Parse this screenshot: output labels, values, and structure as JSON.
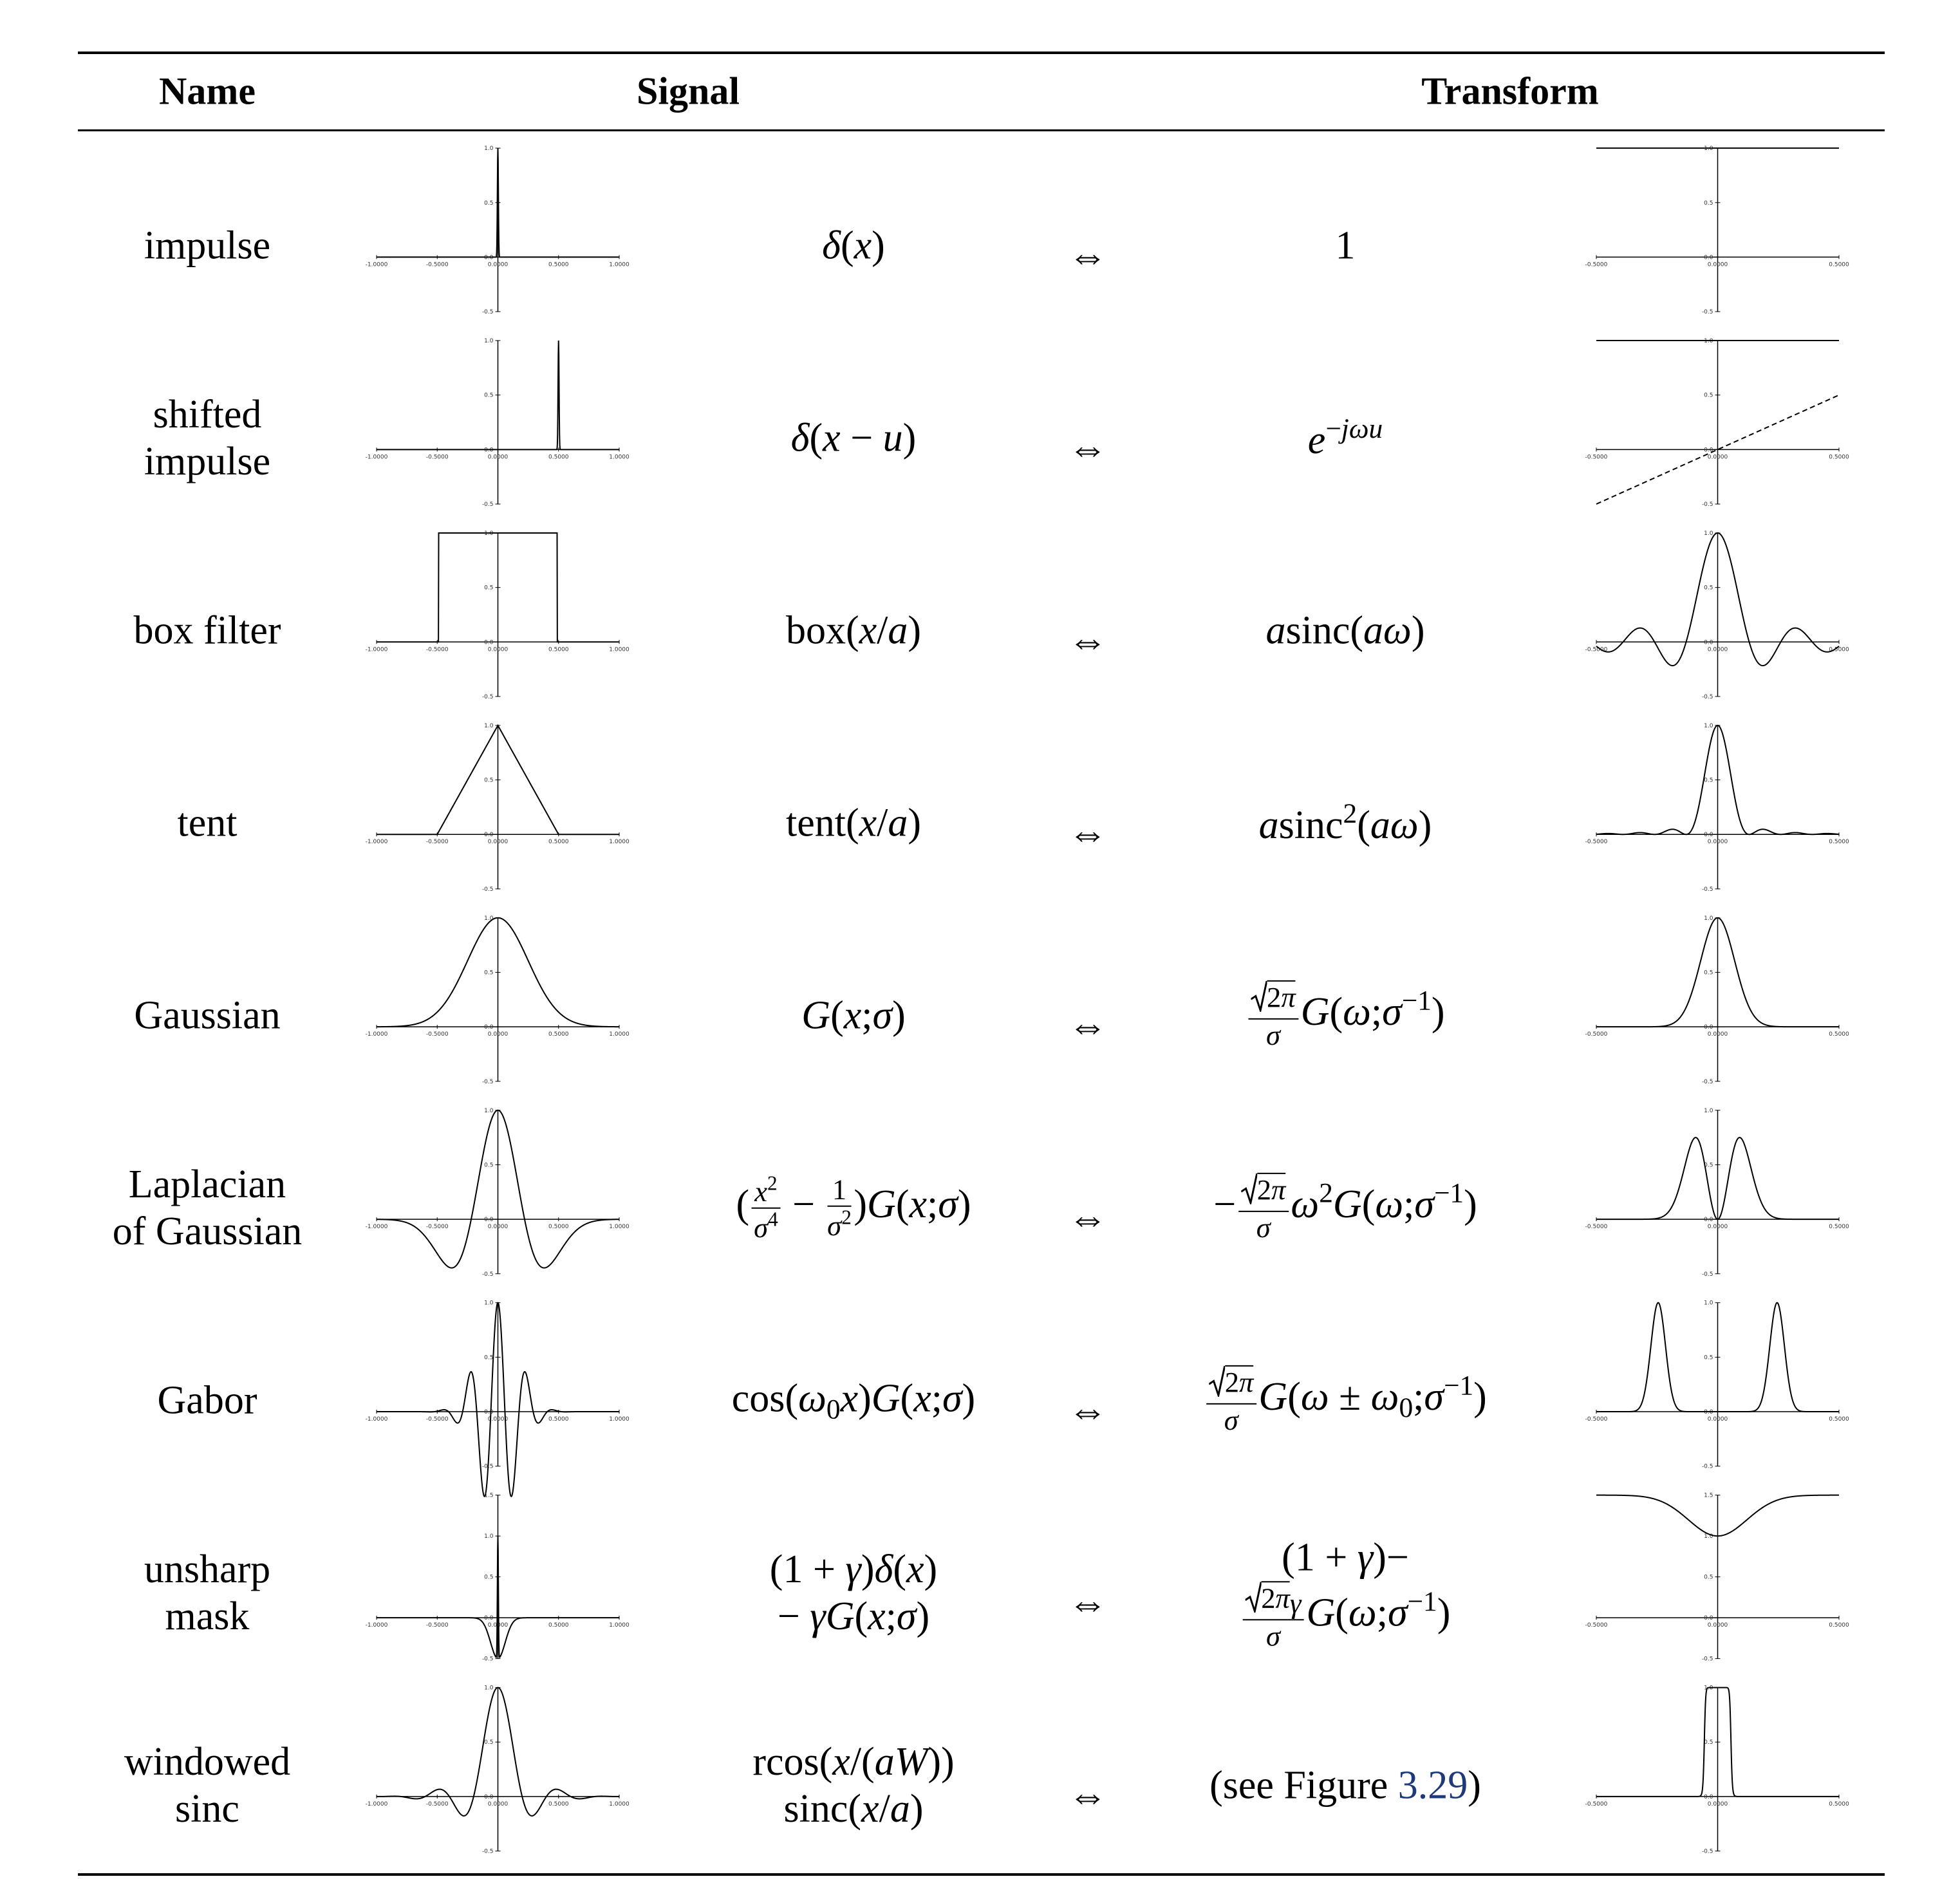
{
  "header": {
    "name": "Name",
    "signal": "Signal",
    "transform": "Transform"
  },
  "signal_axes": {
    "xlim": [
      -1,
      1
    ],
    "xticks": [
      {
        "value": -1,
        "label": "-1.0000"
      },
      {
        "value": -0.5,
        "label": "-0.5000"
      },
      {
        "value": 0,
        "label": "0.0000"
      },
      {
        "value": 0.5,
        "label": "0.5000"
      },
      {
        "value": 1,
        "label": "1.0000"
      }
    ]
  },
  "transform_axes": {
    "xlim": [
      -0.5,
      0.5
    ],
    "xticks": [
      {
        "value": -0.5,
        "label": "-0.5000"
      },
      {
        "value": 0,
        "label": "0.0000"
      },
      {
        "value": 0.5,
        "label": "0.5000"
      }
    ]
  },
  "rows": [
    {
      "name": [
        "impulse"
      ],
      "signal": [
        [
          "δ(x)"
        ]
      ],
      "relation": "⇔",
      "transform": [
        [
          "1"
        ]
      ],
      "ylim": [
        -0.5,
        1.0
      ],
      "yticks": [
        {
          "value": 1,
          "label": "1.0"
        },
        {
          "value": 0.5,
          "label": "0.5"
        },
        {
          "value": 0,
          "label": "0.0"
        },
        {
          "value": -0.5,
          "label": "-0.5"
        }
      ]
    },
    {
      "name": [
        "shifted",
        "impulse"
      ],
      "signal": [
        [
          "δ(x − u)"
        ]
      ],
      "relation": "⇔",
      "transform": [
        [
          "e",
          {
            "sup": [
              "−jωu"
            ]
          }
        ]
      ],
      "ylim": [
        -0.5,
        1.0
      ],
      "yticks": [
        {
          "value": 1,
          "label": "1.0"
        },
        {
          "value": 0.5,
          "label": "0.5"
        },
        {
          "value": 0,
          "label": "0.0"
        },
        {
          "value": -0.5,
          "label": "-0.5"
        }
      ]
    },
    {
      "name": [
        "box filter"
      ],
      "signal": [
        [
          {
            "fn": "box"
          },
          "(x/a)"
        ]
      ],
      "relation": "⇔",
      "transform": [
        [
          "a",
          {
            "fn": "sinc"
          },
          "(aω)"
        ]
      ],
      "ylim": [
        -0.5,
        1.0
      ],
      "yticks": [
        {
          "value": 1,
          "label": "1.0"
        },
        {
          "value": 0.5,
          "label": "0.5"
        },
        {
          "value": 0,
          "label": "0.0"
        },
        {
          "value": -0.5,
          "label": "-0.5"
        }
      ]
    },
    {
      "name": [
        "tent"
      ],
      "signal": [
        [
          {
            "fn": "tent"
          },
          "(x/a)"
        ]
      ],
      "relation": "⇔",
      "transform": [
        [
          "a",
          {
            "fn": "sinc"
          },
          {
            "sup": [
              "2"
            ]
          },
          "(aω)"
        ]
      ],
      "ylim": [
        -0.5,
        1.0
      ],
      "yticks": [
        {
          "value": 1,
          "label": "1.0"
        },
        {
          "value": 0.5,
          "label": "0.5"
        },
        {
          "value": 0,
          "label": "0.0"
        },
        {
          "value": -0.5,
          "label": "-0.5"
        }
      ]
    },
    {
      "name": [
        "Gaussian"
      ],
      "signal": [
        [
          "G(x;σ)"
        ]
      ],
      "relation": "⇔",
      "transform": [
        [
          {
            "frac": {
              "num": [
                {
                  "sqrt": [
                    "2π"
                  ]
                }
              ],
              "den": [
                "σ"
              ]
            }
          },
          "G(ω;σ",
          {
            "sup": [
              "−1"
            ]
          },
          ")"
        ]
      ],
      "ylim": [
        -0.5,
        1.0
      ],
      "yticks": [
        {
          "value": 1,
          "label": "1.0"
        },
        {
          "value": 0.5,
          "label": "0.5"
        },
        {
          "value": 0,
          "label": "0.0"
        },
        {
          "value": -0.5,
          "label": "-0.5"
        }
      ]
    },
    {
      "name": [
        "Laplacian",
        "of Gaussian"
      ],
      "signal": [
        [
          "(",
          {
            "frac": {
              "num": [
                "x",
                {
                  "sup": [
                    "2"
                  ]
                }
              ],
              "den": [
                "σ",
                {
                  "sup": [
                    "4"
                  ]
                }
              ]
            }
          },
          " − ",
          {
            "frac": {
              "num": [
                "1"
              ],
              "den": [
                "σ",
                {
                  "sup": [
                    "2"
                  ]
                }
              ]
            }
          },
          ")G(x;σ)"
        ]
      ],
      "relation": "⇔",
      "transform": [
        [
          "−",
          {
            "frac": {
              "num": [
                {
                  "sqrt": [
                    "2π"
                  ]
                }
              ],
              "den": [
                "σ"
              ]
            }
          },
          "ω",
          {
            "sup": [
              "2"
            ]
          },
          "G(ω;σ",
          {
            "sup": [
              "−1"
            ]
          },
          ")"
        ]
      ],
      "ylim": [
        -0.5,
        1.0
      ],
      "yticks": [
        {
          "value": 1,
          "label": "1.0"
        },
        {
          "value": 0.5,
          "label": "0.5"
        },
        {
          "value": 0,
          "label": "0.0"
        },
        {
          "value": -0.5,
          "label": "-0.5"
        }
      ]
    },
    {
      "name": [
        "Gabor"
      ],
      "signal": [
        [
          {
            "fn": "cos"
          },
          "(ω",
          {
            "sub": [
              "0"
            ]
          },
          "x)G(x;σ)"
        ]
      ],
      "relation": "⇔",
      "transform": [
        [
          {
            "frac": {
              "num": [
                {
                  "sqrt": [
                    "2π"
                  ]
                }
              ],
              "den": [
                "σ"
              ]
            }
          },
          "G(ω ± ω",
          {
            "sub": [
              "0"
            ]
          },
          ";σ",
          {
            "sup": [
              "−1"
            ]
          },
          ")"
        ]
      ],
      "ylim": [
        -0.5,
        1.0
      ],
      "yticks": [
        {
          "value": 1,
          "label": "1.0"
        },
        {
          "value": 0.5,
          "label": "0.5"
        },
        {
          "value": 0,
          "label": "0.0"
        },
        {
          "value": -0.5,
          "label": "-0.5"
        }
      ]
    },
    {
      "name": [
        "unsharp",
        "mask"
      ],
      "signal": [
        [
          "(1 + γ)δ(x)"
        ],
        [
          "− γG(x;σ)"
        ]
      ],
      "relation": "⇔",
      "transform": [
        [
          "(1 + γ)−"
        ],
        [
          {
            "frac": {
              "num": [
                {
                  "sqrt": [
                    "2π"
                  ]
                },
                "γ"
              ],
              "den": [
                "σ"
              ]
            }
          },
          "G(ω;σ",
          {
            "sup": [
              "−1"
            ]
          },
          ")"
        ]
      ],
      "ylim": [
        -0.5,
        1.5
      ],
      "yticks": [
        {
          "value": 1.5,
          "label": "1.5"
        },
        {
          "value": 1,
          "label": "1.0"
        },
        {
          "value": 0.5,
          "label": "0.5"
        },
        {
          "value": 0,
          "label": "0.0"
        },
        {
          "value": -0.5,
          "label": "-0.5"
        }
      ]
    },
    {
      "name": [
        "windowed",
        "sinc"
      ],
      "signal": [
        [
          {
            "fn": "rcos"
          },
          "(x/(aW))"
        ],
        [
          {
            "fn": "sinc"
          },
          "(x/a)"
        ]
      ],
      "relation": "⇔",
      "transform": [
        [
          {
            "text": "(see Figure "
          },
          {
            "link": "3.29"
          },
          {
            "text": ")"
          }
        ]
      ],
      "ylim": [
        -0.5,
        1.0
      ],
      "yticks": [
        {
          "value": 1,
          "label": "1.0"
        },
        {
          "value": 0.5,
          "label": "0.5"
        },
        {
          "value": 0,
          "label": "0.0"
        },
        {
          "value": -0.5,
          "label": "-0.5"
        }
      ]
    }
  ]
}
